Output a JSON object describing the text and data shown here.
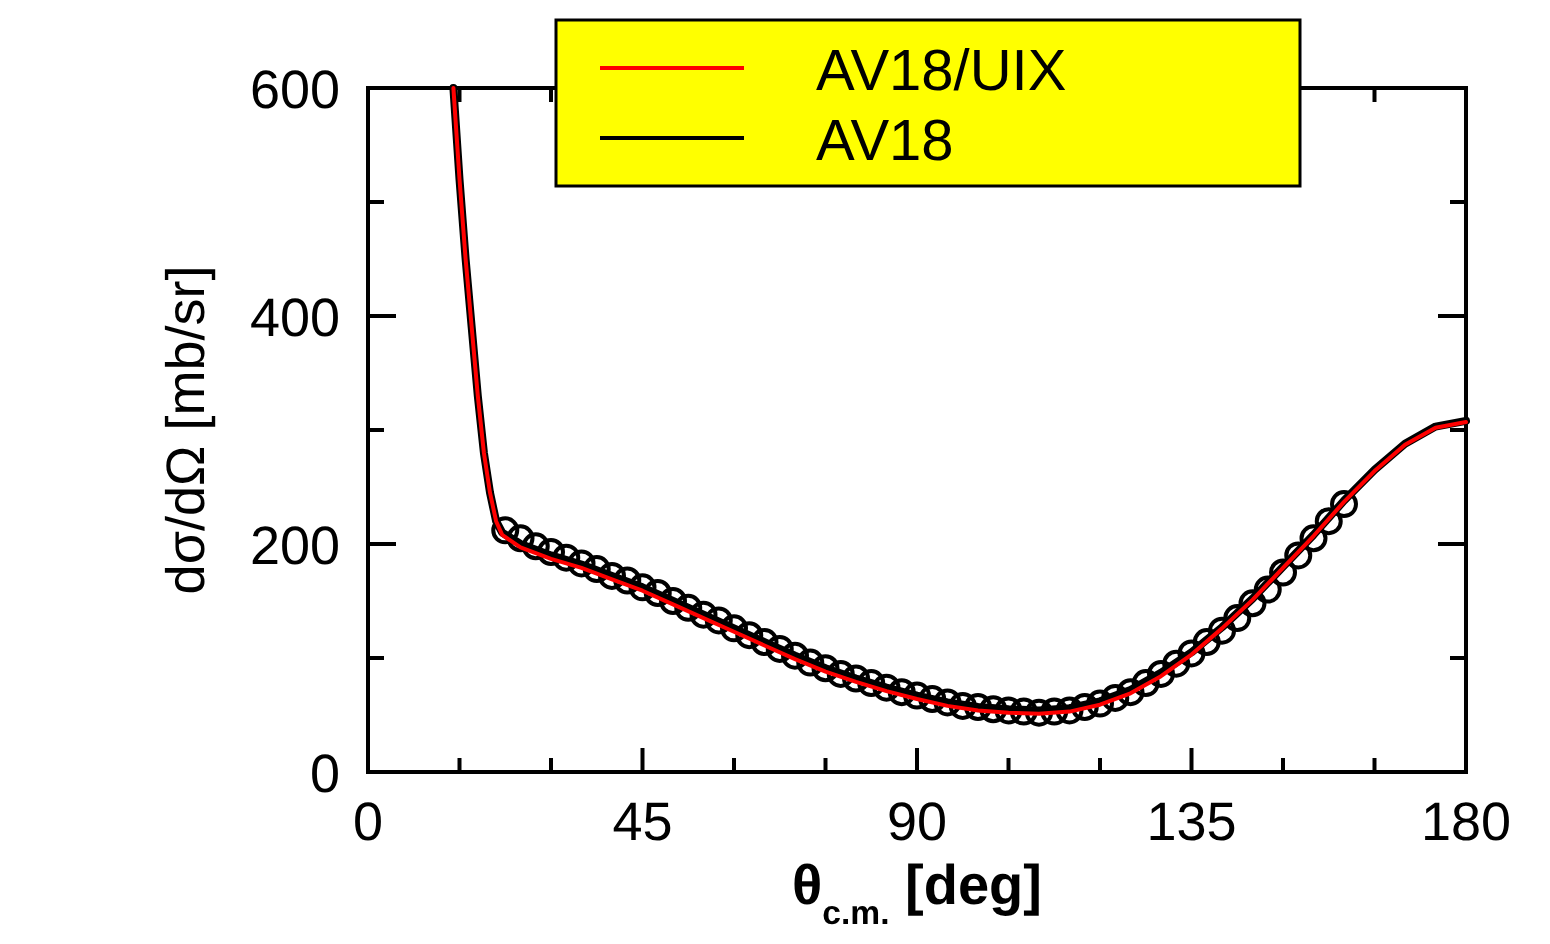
{
  "chart_data": {
    "type": "line",
    "xlabel": "θ$_{c.m.}$ [deg]",
    "ylabel": "dσ/dΩ [mb/sr]",
    "xlim": [
      0,
      180
    ],
    "ylim": [
      0,
      600
    ],
    "xticks": [
      0,
      {
        "value": 15,
        "label": null
      },
      {
        "value": 30,
        "label": null
      },
      45,
      {
        "value": 60,
        "label": null
      },
      {
        "value": 75,
        "label": null
      },
      90,
      {
        "value": 105,
        "label": null
      },
      {
        "value": 120,
        "label": null
      },
      135,
      {
        "value": 150,
        "label": null
      },
      {
        "value": 165,
        "label": null
      },
      180
    ],
    "yticks": [
      0,
      {
        "value": 100,
        "label": null
      },
      200,
      {
        "value": 300,
        "label": null
      },
      400,
      {
        "value": 500,
        "label": null
      },
      600
    ],
    "grid": false,
    "legend": "top",
    "series": [
      {
        "type": "scatter",
        "marker": "circle",
        "color": "#000000",
        "x": [
          22.5,
          25,
          27.5,
          30,
          32.5,
          35,
          37.5,
          40,
          42.5,
          45,
          47.5,
          50,
          52.5,
          55,
          57.5,
          60,
          62.5,
          65,
          67.5,
          70,
          72.5,
          75,
          77.5,
          80,
          82.5,
          85,
          87.5,
          90,
          92.5,
          95,
          97.5,
          100,
          102.5,
          105,
          107.5,
          110,
          112.5,
          115,
          117.5,
          120,
          122.5,
          125,
          127.5,
          130,
          132.5,
          135,
          137.5,
          140,
          142.5,
          145,
          147.5,
          150,
          152.5,
          155,
          157.5,
          160
        ],
        "values": [
          212,
          205,
          198,
          193,
          188,
          183,
          178,
          172,
          168,
          162,
          157,
          150,
          144,
          138,
          133,
          126,
          120,
          114,
          108,
          102,
          96,
          91,
          86,
          82,
          78,
          74,
          70,
          67,
          64,
          61,
          58,
          57,
          55,
          54,
          53,
          52,
          53,
          54,
          57,
          60,
          65,
          70,
          78,
          86,
          95,
          104,
          114,
          124,
          135,
          148,
          160,
          175,
          190,
          205,
          220,
          235
        ]
      },
      {
        "name": "AV18",
        "color": "#000000",
        "x": [
          14,
          15,
          16,
          17,
          18,
          19,
          20,
          21,
          22,
          25,
          30,
          35,
          40,
          45,
          50,
          55,
          60,
          65,
          70,
          75,
          80,
          85,
          90,
          95,
          100,
          105,
          110,
          115,
          120,
          125,
          130,
          135,
          140,
          145,
          150,
          155,
          160,
          165,
          170,
          175,
          180
        ],
        "values": [
          600,
          520,
          450,
          390,
          330,
          280,
          245,
          220,
          210,
          200,
          190,
          182,
          172,
          162,
          150,
          138,
          126,
          114,
          102,
          91,
          82,
          74,
          67,
          61,
          57,
          55,
          54,
          56,
          62,
          72,
          87,
          105,
          127,
          152,
          180,
          208,
          238,
          265,
          288,
          303,
          308
        ]
      },
      {
        "name": "AV18/UIX",
        "color": "#ff0000",
        "x": [
          14,
          15,
          16,
          17,
          18,
          19,
          20,
          21,
          22,
          25,
          30,
          35,
          40,
          45,
          50,
          55,
          60,
          65,
          70,
          75,
          80,
          85,
          90,
          95,
          100,
          105,
          110,
          115,
          120,
          125,
          130,
          135,
          140,
          145,
          150,
          155,
          160,
          165,
          170,
          175,
          180
        ],
        "values": [
          600,
          520,
          450,
          390,
          330,
          280,
          245,
          220,
          208,
          197,
          187,
          179,
          169,
          159,
          147,
          135,
          123,
          111,
          99,
          88,
          79,
          71,
          64,
          58,
          54,
          52,
          51,
          53,
          59,
          69,
          84,
          103,
          126,
          151,
          179,
          207,
          237,
          264,
          287,
          302,
          307
        ]
      }
    ]
  }
}
